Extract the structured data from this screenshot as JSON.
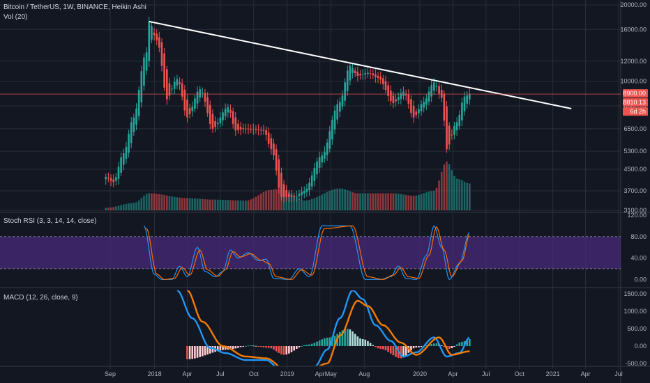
{
  "header": {
    "symbol_line": "Bitcoin / TetherUS, 1W, BINANCE, Heikin Ashi",
    "volume_label": "Vol (20)",
    "stoch_label": "Stoch RSI (3, 3, 14, 14, close)",
    "macd_label": "MACD (12, 26, close, 9)"
  },
  "colors": {
    "background": "#131722",
    "grid": "#2a2e39",
    "up": "#26a69a",
    "down": "#ef5350",
    "trendline": "#ffffff",
    "stoch_k": "#2196f3",
    "stoch_d": "#ff6d00",
    "stoch_band": "#4a2a7a",
    "macd_line": "#2196f3",
    "signal_line": "#f57c00"
  },
  "price_badges": {
    "last_price": "8900.00",
    "second_price": "8810.13",
    "countdown": "6d 2h"
  },
  "chart_data": [
    {
      "type": "candlestick",
      "title": "Bitcoin / TetherUS, 1W, BINANCE, Heikin Ashi",
      "x_ticks": [
        "Sep",
        "2018",
        "Apr",
        "Jul",
        "Oct",
        "2019",
        "Apr",
        "May",
        "Aug",
        "2020",
        "Apr",
        "Jul",
        "Oct",
        "2021",
        "Apr",
        "Jul"
      ],
      "y_ticks": [
        "20000.00",
        "16000.00",
        "12000.00",
        "10000.00",
        "8000.00",
        "6500.00",
        "5300.00",
        "4500.00",
        "3700.00",
        "3100.00"
      ],
      "y_scale": "log",
      "ylim": [
        3100,
        20000
      ],
      "trendline": {
        "from": {
          "date": "2017-12-17",
          "price": 17200
        },
        "to": {
          "date": "2021-02-21",
          "price": 7800
        }
      },
      "horizontal_line": 8900,
      "anchors": [
        [
          "2017-08-20",
          4200
        ],
        [
          "2017-09-10",
          4000
        ],
        [
          "2017-10-08",
          5200
        ],
        [
          "2017-11-05",
          7200
        ],
        [
          "2017-12-10",
          13000
        ],
        [
          "2017-12-17",
          17200
        ],
        [
          "2018-01-07",
          14500
        ],
        [
          "2018-02-04",
          8500
        ],
        [
          "2018-03-04",
          10200
        ],
        [
          "2018-04-01",
          7200
        ],
        [
          "2018-05-06",
          9300
        ],
        [
          "2018-06-10",
          6500
        ],
        [
          "2018-07-22",
          7900
        ],
        [
          "2018-08-12",
          6400
        ],
        [
          "2018-09-09",
          6500
        ],
        [
          "2018-10-28",
          6400
        ],
        [
          "2018-11-18",
          5400
        ],
        [
          "2018-12-16",
          3500
        ],
        [
          "2019-01-20",
          3500
        ],
        [
          "2019-02-17",
          3700
        ],
        [
          "2019-04-07",
          5100
        ],
        [
          "2019-05-26",
          8300
        ],
        [
          "2019-06-23",
          11500
        ],
        [
          "2019-07-14",
          10500
        ],
        [
          "2019-08-11",
          10800
        ],
        [
          "2019-09-08",
          10300
        ],
        [
          "2019-10-20",
          8200
        ],
        [
          "2019-11-17",
          9100
        ],
        [
          "2019-12-15",
          7200
        ],
        [
          "2020-01-12",
          8300
        ],
        [
          "2020-02-09",
          9900
        ],
        [
          "2020-03-01",
          8600
        ],
        [
          "2020-03-15",
          5400
        ],
        [
          "2020-04-12",
          6900
        ],
        [
          "2020-05-03",
          8700
        ],
        [
          "2020-05-17",
          8900
        ]
      ]
    },
    {
      "type": "bar",
      "title": "Vol (20)",
      "anchors": [
        [
          "2017-08-20",
          0.05
        ],
        [
          "2017-11-05",
          0.15
        ],
        [
          "2017-12-17",
          0.35
        ],
        [
          "2018-04-01",
          0.25
        ],
        [
          "2018-06-10",
          0.22
        ],
        [
          "2018-09-09",
          0.2
        ],
        [
          "2018-11-18",
          0.42
        ],
        [
          "2018-12-16",
          0.45
        ],
        [
          "2019-02-17",
          0.2
        ],
        [
          "2019-05-26",
          0.45
        ],
        [
          "2019-07-14",
          0.35
        ],
        [
          "2019-10-20",
          0.35
        ],
        [
          "2019-12-15",
          0.3
        ],
        [
          "2020-02-09",
          0.4
        ],
        [
          "2020-03-15",
          1.0
        ],
        [
          "2020-04-12",
          0.65
        ],
        [
          "2020-05-17",
          0.55
        ]
      ]
    },
    {
      "type": "line",
      "title": "Stoch RSI (3, 3, 14, 14, close)",
      "y_ticks": [
        "120.00",
        "80.00",
        "40.00",
        "0.00"
      ],
      "ylim": [
        -10,
        120
      ],
      "band": [
        20,
        80
      ],
      "series": [
        {
          "key": "k",
          "anchors": [
            [
              "2017-12-03",
              100
            ],
            [
              "2017-12-31",
              10
            ],
            [
              "2018-01-21",
              0
            ],
            [
              "2018-02-18",
              0
            ],
            [
              "2018-03-11",
              25
            ],
            [
              "2018-04-01",
              5
            ],
            [
              "2018-04-29",
              60
            ],
            [
              "2018-05-20",
              15
            ],
            [
              "2018-06-17",
              5
            ],
            [
              "2018-07-08",
              15
            ],
            [
              "2018-07-29",
              55
            ],
            [
              "2018-08-19",
              40
            ],
            [
              "2018-09-16",
              50
            ],
            [
              "2018-10-14",
              35
            ],
            [
              "2018-11-04",
              38
            ],
            [
              "2018-11-25",
              2
            ],
            [
              "2019-01-06",
              0
            ],
            [
              "2019-02-03",
              20
            ],
            [
              "2019-03-03",
              5
            ],
            [
              "2019-04-07",
              100
            ],
            [
              "2019-06-23",
              100
            ],
            [
              "2019-08-04",
              0
            ],
            [
              "2019-09-15",
              0
            ],
            [
              "2019-10-13",
              5
            ],
            [
              "2019-11-03",
              25
            ],
            [
              "2019-11-24",
              2
            ],
            [
              "2019-12-22",
              0
            ],
            [
              "2020-01-19",
              45
            ],
            [
              "2020-02-09",
              100
            ],
            [
              "2020-03-01",
              60
            ],
            [
              "2020-03-22",
              0
            ],
            [
              "2020-04-19",
              30
            ],
            [
              "2020-05-17",
              88
            ]
          ]
        },
        {
          "key": "d",
          "anchors": [
            [
              "2017-12-10",
              95
            ],
            [
              "2018-01-07",
              10
            ],
            [
              "2018-01-28",
              0
            ],
            [
              "2018-02-25",
              2
            ],
            [
              "2018-03-18",
              22
            ],
            [
              "2018-04-08",
              8
            ],
            [
              "2018-05-06",
              55
            ],
            [
              "2018-05-27",
              18
            ],
            [
              "2018-06-24",
              6
            ],
            [
              "2018-07-15",
              18
            ],
            [
              "2018-08-05",
              52
            ],
            [
              "2018-08-26",
              42
            ],
            [
              "2018-09-23",
              48
            ],
            [
              "2018-10-21",
              36
            ],
            [
              "2018-11-11",
              30
            ],
            [
              "2018-12-02",
              5
            ],
            [
              "2019-01-13",
              0
            ],
            [
              "2019-02-10",
              18
            ],
            [
              "2019-03-10",
              8
            ],
            [
              "2019-04-14",
              95
            ],
            [
              "2019-06-30",
              100
            ],
            [
              "2019-08-11",
              5
            ],
            [
              "2019-09-22",
              0
            ],
            [
              "2019-10-20",
              8
            ],
            [
              "2019-11-10",
              22
            ],
            [
              "2019-12-01",
              5
            ],
            [
              "2019-12-29",
              2
            ],
            [
              "2020-01-26",
              45
            ],
            [
              "2020-02-16",
              98
            ],
            [
              "2020-03-08",
              55
            ],
            [
              "2020-03-29",
              5
            ],
            [
              "2020-04-26",
              35
            ],
            [
              "2020-05-17",
              84
            ]
          ]
        }
      ]
    },
    {
      "type": "line",
      "title": "MACD (12, 26, close, 9)",
      "y_ticks": [
        "1500.00",
        "1000.00",
        "500.00",
        "0.00",
        "-500.00"
      ],
      "ylim": [
        -560,
        1600
      ],
      "series": [
        {
          "key": "macd",
          "anchors": [
            [
              "2018-03-04",
              1600
            ],
            [
              "2018-04-15",
              800
            ],
            [
              "2018-06-03",
              -50
            ],
            [
              "2018-07-15",
              -200
            ],
            [
              "2018-09-09",
              -400
            ],
            [
              "2018-11-04",
              -400
            ],
            [
              "2018-12-16",
              -700
            ],
            [
              "2019-02-17",
              -800
            ],
            [
              "2019-03-17",
              -600
            ],
            [
              "2019-04-21",
              -100
            ],
            [
              "2019-05-26",
              800
            ],
            [
              "2019-06-30",
              1600
            ],
            [
              "2019-07-28",
              1350
            ],
            [
              "2019-09-01",
              600
            ],
            [
              "2019-10-13",
              150
            ],
            [
              "2019-11-17",
              -300
            ],
            [
              "2019-12-22",
              -180
            ],
            [
              "2020-02-09",
              250
            ],
            [
              "2020-03-15",
              -300
            ],
            [
              "2020-04-19",
              -200
            ],
            [
              "2020-05-17",
              250
            ]
          ]
        },
        {
          "key": "signal",
          "anchors": [
            [
              "2018-04-01",
              1600
            ],
            [
              "2018-05-13",
              700
            ],
            [
              "2018-07-08",
              0
            ],
            [
              "2018-09-09",
              -300
            ],
            [
              "2018-11-04",
              -350
            ],
            [
              "2018-12-30",
              -700
            ],
            [
              "2019-02-17",
              -800
            ],
            [
              "2019-04-21",
              -500
            ],
            [
              "2019-05-26",
              300
            ],
            [
              "2019-07-14",
              1300
            ],
            [
              "2019-08-11",
              1150
            ],
            [
              "2019-09-22",
              600
            ],
            [
              "2019-11-10",
              100
            ],
            [
              "2019-12-22",
              -250
            ],
            [
              "2020-02-23",
              250
            ],
            [
              "2020-03-29",
              -250
            ],
            [
              "2020-05-17",
              -150
            ]
          ]
        }
      ],
      "histogram_anchors": [
        [
          "2018-04-01",
          -380
        ],
        [
          "2018-07-22",
          -100
        ],
        [
          "2018-09-23",
          20
        ],
        [
          "2018-11-11",
          -50
        ],
        [
          "2018-12-23",
          -250
        ],
        [
          "2019-02-24",
          40
        ],
        [
          "2019-04-28",
          250
        ],
        [
          "2019-06-16",
          500
        ],
        [
          "2019-07-28",
          200
        ],
        [
          "2019-09-15",
          -80
        ],
        [
          "2019-11-10",
          -350
        ],
        [
          "2019-12-22",
          -40
        ],
        [
          "2020-02-16",
          80
        ],
        [
          "2020-03-22",
          -80
        ],
        [
          "2020-04-26",
          120
        ],
        [
          "2020-05-17",
          200
        ]
      ]
    }
  ]
}
